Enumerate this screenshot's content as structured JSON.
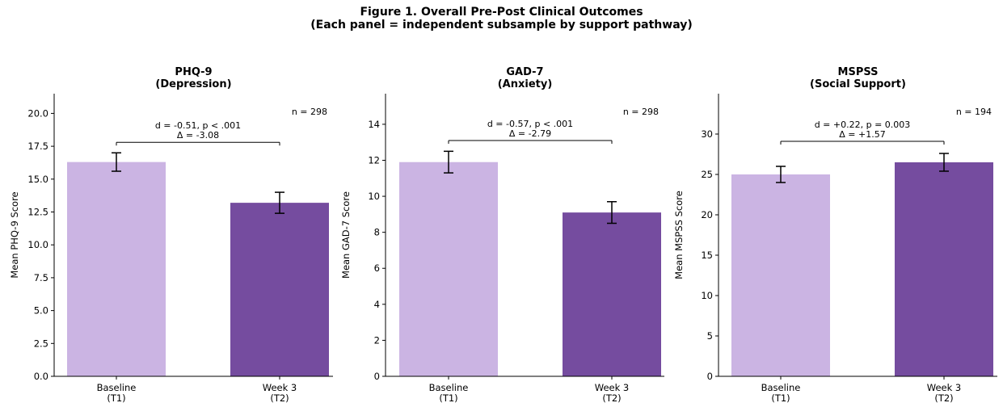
{
  "figure": {
    "title_line1": "Figure 1. Overall Pre-Post Clinical Outcomes",
    "title_line2": "(Each panel = independent subsample by support pathway)"
  },
  "colors": {
    "baseline": "#cbb4e3",
    "week3": "#754c9f",
    "axis": "#000000"
  },
  "chart_data": [
    {
      "type": "bar",
      "title": [
        "PHQ-9",
        "(Depression)"
      ],
      "ylabel": "Mean PHQ-9 Score",
      "ylim": [
        0,
        21.5
      ],
      "yticks": [
        0,
        2.5,
        5,
        7.5,
        10,
        12.5,
        15,
        17.5,
        20
      ],
      "ytick_labels": [
        "0.0",
        "2.5",
        "5.0",
        "7.5",
        "10.0",
        "12.5",
        "15.0",
        "17.5",
        "20.0"
      ],
      "categories": [
        [
          "Baseline",
          "(T1)"
        ],
        [
          "Week 3",
          "(T2)"
        ]
      ],
      "values": [
        16.3,
        13.2
      ],
      "errors": [
        0.7,
        0.8
      ],
      "annotation": {
        "stats": "d = -0.51, p < .001",
        "delta": "Δ = -3.08",
        "y": 17.8
      },
      "n_label": "n = 298"
    },
    {
      "type": "bar",
      "title": [
        "GAD-7",
        "(Anxiety)"
      ],
      "ylabel": "Mean GAD-7 Score",
      "ylim": [
        0,
        15.7
      ],
      "yticks": [
        0,
        2,
        4,
        6,
        8,
        10,
        12,
        14
      ],
      "ytick_labels": [
        "0",
        "2",
        "4",
        "6",
        "8",
        "10",
        "12",
        "14"
      ],
      "categories": [
        [
          "Baseline",
          "(T1)"
        ],
        [
          "Week 3",
          "(T2)"
        ]
      ],
      "values": [
        11.9,
        9.1
      ],
      "errors": [
        0.6,
        0.6
      ],
      "annotation": {
        "stats": "d = -0.57, p < .001",
        "delta": "Δ = -2.79",
        "y": 13.1
      },
      "n_label": "n = 298"
    },
    {
      "type": "bar",
      "title": [
        "MSPSS",
        "(Social Support)"
      ],
      "ylabel": "Mean MSPSS Score",
      "ylim": [
        0,
        35
      ],
      "yticks": [
        0,
        5,
        10,
        15,
        20,
        25,
        30
      ],
      "ytick_labels": [
        "0",
        "5",
        "10",
        "15",
        "20",
        "25",
        "30"
      ],
      "categories": [
        [
          "Baseline",
          "(T1)"
        ],
        [
          "Week 3",
          "(T2)"
        ]
      ],
      "values": [
        25.0,
        26.5
      ],
      "errors": [
        1.0,
        1.1
      ],
      "annotation": {
        "stats": "d = +0.22, p = 0.003",
        "delta": "Δ = +1.57",
        "y": 29.1
      },
      "n_label": "n = 194"
    }
  ]
}
